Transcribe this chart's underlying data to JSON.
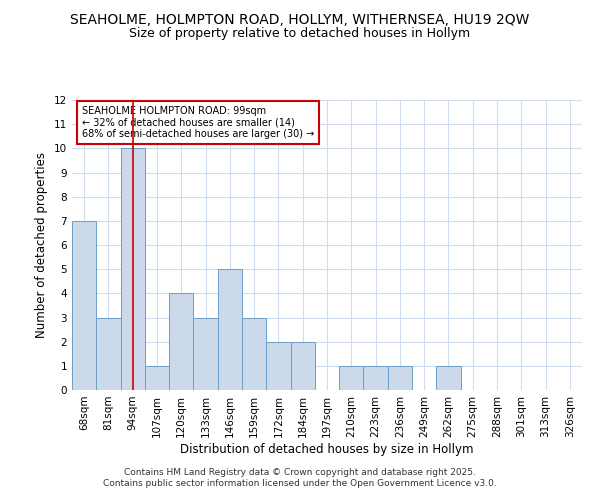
{
  "title1": "SEAHOLME, HOLMPTON ROAD, HOLLYM, WITHERNSEA, HU19 2QW",
  "title2": "Size of property relative to detached houses in Hollym",
  "xlabel": "Distribution of detached houses by size in Hollym",
  "ylabel": "Number of detached properties",
  "categories": [
    "68sqm",
    "81sqm",
    "94sqm",
    "107sqm",
    "120sqm",
    "133sqm",
    "146sqm",
    "159sqm",
    "172sqm",
    "184sqm",
    "197sqm",
    "210sqm",
    "223sqm",
    "236sqm",
    "249sqm",
    "262sqm",
    "275sqm",
    "288sqm",
    "301sqm",
    "313sqm",
    "326sqm"
  ],
  "values": [
    7,
    3,
    10,
    1,
    4,
    3,
    5,
    3,
    2,
    2,
    0,
    1,
    1,
    1,
    0,
    1,
    0,
    0,
    0,
    0,
    0
  ],
  "bar_color": "#ccd9ea",
  "bar_edge_color": "#6b9ec8",
  "highlight_index": 2,
  "highlight_line_color": "#cc0000",
  "annotation_text": "SEAHOLME HOLMPTON ROAD: 99sqm\n← 32% of detached houses are smaller (14)\n68% of semi-detached houses are larger (30) →",
  "annotation_box_color": "#ffffff",
  "annotation_box_edge": "#cc0000",
  "ylim": [
    0,
    12
  ],
  "yticks": [
    0,
    1,
    2,
    3,
    4,
    5,
    6,
    7,
    8,
    9,
    10,
    11,
    12
  ],
  "footer": "Contains HM Land Registry data © Crown copyright and database right 2025.\nContains public sector information licensed under the Open Government Licence v3.0.",
  "background_color": "#ffffff",
  "plot_background": "#ffffff",
  "grid_color": "#d0dcf0",
  "title_fontsize": 10,
  "subtitle_fontsize": 9,
  "axis_label_fontsize": 8.5,
  "tick_fontsize": 7.5,
  "footer_fontsize": 6.5
}
